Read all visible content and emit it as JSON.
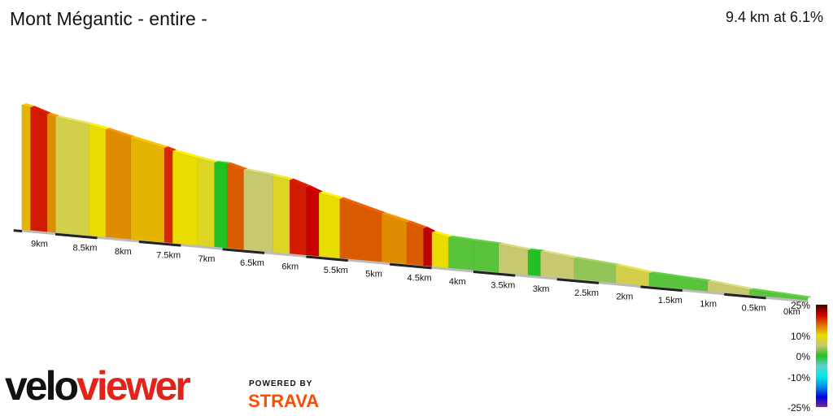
{
  "header": {
    "title": "Mont Mégantic - entire -",
    "summary": "9.4 km at 6.1%"
  },
  "chart_data": {
    "type": "area",
    "title": "Mont Mégantic - entire -",
    "subtitle": "9.4 km at 6.1%",
    "x_unit": "km",
    "x_reversed": true,
    "xlim": [
      0,
      9.4
    ],
    "x_ticks": [
      "0km",
      "0.5km",
      "1km",
      "1.5km",
      "2km",
      "2.5km",
      "3km",
      "3.5km",
      "4km",
      "4.5km",
      "5km",
      "5.5km",
      "6km",
      "6.5km",
      "7km",
      "7.5km",
      "8km",
      "8.5km",
      "9km"
    ],
    "x_tick_values": [
      0,
      0.5,
      1,
      1.5,
      2,
      2.5,
      3,
      3.5,
      4,
      4.5,
      5,
      5.5,
      6,
      6.5,
      7,
      7.5,
      8,
      8.5,
      9
    ],
    "segments_columns": [
      "start_km",
      "end_km",
      "gradient_pct"
    ],
    "segments": [
      [
        0,
        0.7,
        2
      ],
      [
        0.7,
        1.2,
        4
      ],
      [
        1.2,
        1.9,
        2
      ],
      [
        1.9,
        2.3,
        5
      ],
      [
        2.3,
        2.8,
        3
      ],
      [
        2.8,
        3.2,
        4
      ],
      [
        3.2,
        3.35,
        1
      ],
      [
        3.35,
        3.7,
        4
      ],
      [
        3.7,
        4.0,
        2
      ],
      [
        4.0,
        4.3,
        2
      ],
      [
        4.3,
        4.5,
        7
      ],
      [
        4.5,
        4.6,
        15
      ],
      [
        4.6,
        4.8,
        10
      ],
      [
        4.8,
        5.1,
        9
      ],
      [
        5.1,
        5.6,
        10
      ],
      [
        5.6,
        5.85,
        7
      ],
      [
        5.85,
        6.0,
        14
      ],
      [
        6.0,
        6.2,
        12
      ],
      [
        6.2,
        6.4,
        6
      ],
      [
        6.4,
        6.75,
        4
      ],
      [
        6.75,
        6.95,
        10
      ],
      [
        6.95,
        7.1,
        1
      ],
      [
        7.1,
        7.3,
        6
      ],
      [
        7.3,
        7.6,
        7
      ],
      [
        7.6,
        7.7,
        11
      ],
      [
        7.7,
        8.1,
        8
      ],
      [
        8.1,
        8.4,
        9
      ],
      [
        8.4,
        8.6,
        7
      ],
      [
        8.6,
        9.0,
        5
      ],
      [
        9.0,
        9.1,
        9
      ],
      [
        9.1,
        9.3,
        12
      ],
      [
        9.3,
        9.4,
        8
      ]
    ],
    "legend": {
      "labels": [
        "25%",
        "10%",
        "0%",
        "-10%",
        "-25%"
      ],
      "values": [
        25,
        10,
        0,
        -10,
        -25
      ],
      "placement": "bottom-right",
      "colors": [
        "#4a0000",
        "#d40000",
        "#e07000",
        "#e8dc00",
        "#c8c870",
        "#22c022",
        "#60d0d0",
        "#00e8e8",
        "#0090e8",
        "#0000e0",
        "#703090"
      ]
    },
    "grid": false
  },
  "branding": {
    "logo_velo": "velo",
    "logo_viewer": "viewer",
    "powered_by": "POWERED BY",
    "strava": "STRAVA"
  }
}
